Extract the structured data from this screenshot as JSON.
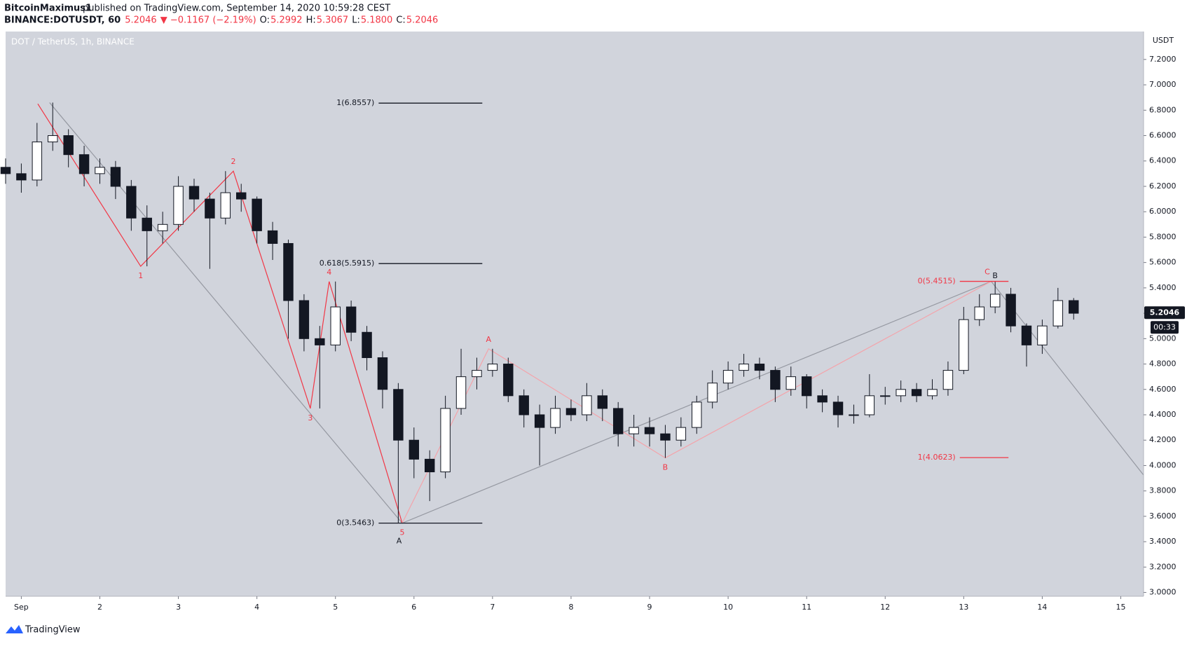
{
  "header": {
    "author": "BitcoinMaximus1",
    "published": "published on TradingView.com, September 14, 2020 10:59:28 CEST",
    "symbol": "BINANCE:DOTUSDT, 60",
    "price": "5.2046",
    "change": "▼ −0.1167 (−2.19%)",
    "ohlc": [
      {
        "key": "O:",
        "value": "5.2992"
      },
      {
        "key": "H:",
        "value": "5.3067"
      },
      {
        "key": "L:",
        "value": "5.1800"
      },
      {
        "key": "C:",
        "value": "5.2046"
      }
    ]
  },
  "chart_data": {
    "type": "candlestick",
    "title": "DOT / TetherUS, 1h, BINANCE",
    "y_unit": "USDT",
    "up_color": "#ffffff",
    "down_color": "#131722",
    "outline_color": "#131722",
    "background": "#d1d4dc",
    "grid": false,
    "x": [
      0.8,
      1.0,
      1.2,
      1.4,
      1.6,
      1.8,
      2.0,
      2.2,
      2.4,
      2.6,
      2.8,
      3.0,
      3.2,
      3.4,
      3.6,
      3.8,
      4.0,
      4.2,
      4.4,
      4.6,
      4.8,
      5.0,
      5.2,
      5.4,
      5.6,
      5.8,
      6.0,
      6.2,
      6.4,
      6.6,
      6.8,
      7.0,
      7.2,
      7.4,
      7.6,
      7.8,
      8.0,
      8.2,
      8.4,
      8.6,
      8.8,
      9.0,
      9.2,
      9.4,
      9.6,
      9.8,
      10.0,
      10.2,
      10.4,
      10.6,
      10.8,
      11.0,
      11.2,
      11.4,
      11.6,
      11.8,
      12.0,
      12.2,
      12.4,
      12.6,
      12.8,
      13.0,
      13.2,
      13.4,
      13.6,
      13.8,
      14.0,
      14.2,
      14.4
    ],
    "open": [
      6.35,
      6.3,
      6.25,
      6.55,
      6.6,
      6.45,
      6.3,
      6.35,
      6.2,
      5.95,
      5.85,
      5.9,
      6.2,
      6.1,
      5.95,
      6.15,
      6.1,
      5.85,
      5.75,
      5.3,
      5.0,
      4.95,
      5.25,
      5.05,
      4.85,
      4.6,
      4.2,
      4.05,
      3.95,
      4.45,
      4.7,
      4.75,
      4.8,
      4.55,
      4.4,
      4.3,
      4.45,
      4.4,
      4.55,
      4.45,
      4.25,
      4.3,
      4.25,
      4.2,
      4.3,
      4.5,
      4.65,
      4.75,
      4.8,
      4.75,
      4.6,
      4.7,
      4.55,
      4.5,
      4.4,
      4.4,
      4.55,
      4.55,
      4.6,
      4.55,
      4.6,
      4.75,
      5.15,
      5.25,
      5.35,
      5.1,
      4.95,
      5.1,
      5.3
    ],
    "high": [
      6.42,
      6.38,
      6.7,
      6.86,
      6.65,
      6.52,
      6.42,
      6.4,
      6.25,
      6.05,
      6.0,
      6.28,
      6.26,
      6.15,
      6.32,
      6.22,
      6.12,
      5.92,
      5.78,
      5.35,
      5.1,
      5.45,
      5.3,
      5.1,
      4.9,
      4.65,
      4.3,
      4.12,
      4.55,
      4.92,
      4.85,
      4.92,
      4.85,
      4.6,
      4.48,
      4.55,
      4.52,
      4.65,
      4.6,
      4.5,
      4.4,
      4.38,
      4.32,
      4.38,
      4.55,
      4.75,
      4.82,
      4.88,
      4.85,
      4.78,
      4.78,
      4.72,
      4.6,
      4.55,
      4.48,
      4.72,
      4.62,
      4.67,
      4.65,
      4.68,
      4.82,
      5.25,
      5.35,
      5.4515,
      5.4,
      5.12,
      5.15,
      5.4,
      5.32
    ],
    "low": [
      6.22,
      6.15,
      6.2,
      6.48,
      6.35,
      6.2,
      6.22,
      6.1,
      5.85,
      5.57,
      5.75,
      5.85,
      6.0,
      5.55,
      5.9,
      6.0,
      5.75,
      5.62,
      5.0,
      4.9,
      4.45,
      4.9,
      4.98,
      4.75,
      4.45,
      3.5463,
      3.9,
      3.72,
      3.9,
      4.4,
      4.6,
      4.7,
      4.5,
      4.3,
      4.0,
      4.25,
      4.35,
      4.35,
      4.35,
      4.15,
      4.15,
      4.15,
      4.06,
      4.15,
      4.25,
      4.45,
      4.6,
      4.7,
      4.68,
      4.5,
      4.55,
      4.45,
      4.42,
      4.3,
      4.33,
      4.38,
      4.48,
      4.5,
      4.5,
      4.52,
      4.55,
      4.72,
      5.1,
      5.2,
      5.05,
      4.78,
      4.88,
      5.08,
      5.15
    ],
    "close": [
      6.3,
      6.25,
      6.55,
      6.6,
      6.45,
      6.3,
      6.35,
      6.2,
      5.95,
      5.85,
      5.9,
      6.2,
      6.1,
      5.95,
      6.15,
      6.1,
      5.85,
      5.75,
      5.3,
      5.0,
      4.95,
      5.25,
      5.05,
      4.85,
      4.6,
      4.2,
      4.05,
      3.95,
      4.45,
      4.7,
      4.75,
      4.8,
      4.55,
      4.4,
      4.3,
      4.45,
      4.4,
      4.55,
      4.45,
      4.25,
      4.3,
      4.25,
      4.2,
      4.3,
      4.5,
      4.65,
      4.75,
      4.8,
      4.75,
      4.6,
      4.7,
      4.55,
      4.5,
      4.4,
      4.4,
      4.55,
      4.55,
      4.6,
      4.55,
      4.6,
      4.75,
      5.15,
      5.25,
      5.35,
      5.1,
      4.95,
      5.1,
      5.3,
      5.2
    ],
    "xlim": [
      0.8,
      15.29
    ],
    "xticks": [
      {
        "value": 1,
        "label": "Sep"
      },
      2,
      3,
      4,
      5,
      6,
      7,
      8,
      9,
      10,
      11,
      12,
      13,
      14,
      15
    ],
    "ylim": [
      2.97,
      7.42
    ],
    "yticks": [
      {
        "value": 3.0,
        "label": "3.0000"
      },
      {
        "value": 3.2,
        "label": "3.2000"
      },
      {
        "value": 3.4,
        "label": "3.4000"
      },
      {
        "value": 3.6,
        "label": "3.6000"
      },
      {
        "value": 3.8,
        "label": "3.8000"
      },
      {
        "value": 4.0,
        "label": "4.0000"
      },
      {
        "value": 4.2,
        "label": "4.2000"
      },
      {
        "value": 4.4,
        "label": "4.4000"
      },
      {
        "value": 4.6,
        "label": "4.6000"
      },
      {
        "value": 4.8,
        "label": "4.8000"
      },
      {
        "value": 5.0,
        "label": "5.0000"
      },
      {
        "value": 5.2,
        "label": "5.2000"
      },
      {
        "value": 5.4,
        "label": "5.4000"
      },
      {
        "value": 5.6,
        "label": "5.6000"
      },
      {
        "value": 5.8,
        "label": "5.8000"
      },
      {
        "value": 6.0,
        "label": "6.0000"
      },
      {
        "value": 6.2,
        "label": "6.2000"
      },
      {
        "value": 6.4,
        "label": "6.4000"
      },
      {
        "value": 6.6,
        "label": "6.6000"
      },
      {
        "value": 6.8,
        "label": "6.8000"
      },
      {
        "value": 7.0,
        "label": "7.0000"
      },
      {
        "value": 7.2,
        "label": "7.2000"
      }
    ],
    "last_price": 5.2046,
    "countdown": "00:33",
    "fib_levels": [
      {
        "label": "1(6.8557)",
        "value": 6.8557,
        "x": [
          5.55,
          6.87
        ],
        "color": "#131722"
      },
      {
        "label": "0.618(5.5915)",
        "value": 5.5915,
        "x": [
          5.55,
          6.87
        ],
        "color": "#131722"
      },
      {
        "label": "0(3.5463)",
        "value": 3.5463,
        "x": [
          5.55,
          6.87
        ],
        "color": "#131722"
      },
      {
        "label": "0(5.4515)",
        "value": 5.4515,
        "x": [
          12.95,
          13.57
        ],
        "color": "#f23645"
      },
      {
        "label": "1(4.0623)",
        "value": 4.0623,
        "x": [
          12.95,
          13.57
        ],
        "color": "#f23645"
      }
    ],
    "wave_paths": [
      {
        "color": "#9598a1",
        "x": [
          1.36,
          5.85,
          13.35,
          15.29
        ],
        "y": [
          6.86,
          3.5463,
          5.4515,
          3.925
        ]
      },
      {
        "color": "#f23645",
        "x": [
          1.21,
          2.52,
          3.7,
          4.68,
          4.92,
          5.85
        ],
        "y": [
          6.85,
          5.57,
          6.32,
          4.45,
          5.45,
          3.5463
        ]
      },
      {
        "color": "#f4a3aa",
        "x": [
          5.85,
          6.95,
          9.2,
          13.35
        ],
        "y": [
          3.5463,
          4.92,
          4.06,
          5.4515
        ]
      }
    ],
    "wave_labels": [
      {
        "text": "1",
        "x": 2.52,
        "y": 5.57,
        "pos": "below",
        "color": "#f23645"
      },
      {
        "text": "2",
        "x": 3.7,
        "y": 6.32,
        "pos": "above",
        "color": "#f23645"
      },
      {
        "text": "3",
        "x": 4.68,
        "y": 4.45,
        "pos": "below",
        "color": "#f23645"
      },
      {
        "text": "4",
        "x": 4.92,
        "y": 5.45,
        "pos": "above",
        "color": "#f23645"
      },
      {
        "text": "5",
        "x": 5.85,
        "y": 3.5463,
        "pos": "below",
        "color": "#f23645"
      },
      {
        "text": "A",
        "x": 5.81,
        "y": 3.48,
        "pos": "below",
        "color": "#131722"
      },
      {
        "text": "A",
        "x": 6.95,
        "y": 4.92,
        "pos": "above",
        "color": "#f23645"
      },
      {
        "text": "B",
        "x": 9.2,
        "y": 4.06,
        "pos": "below",
        "color": "#f23645"
      },
      {
        "text": "C",
        "x": 13.3,
        "y": 5.4515,
        "pos": "above",
        "color": "#f23645"
      },
      {
        "text": "B",
        "x": 13.4,
        "y": 5.42,
        "pos": "above",
        "color": "#131722"
      }
    ]
  },
  "footer": {
    "brand": "TradingView"
  }
}
